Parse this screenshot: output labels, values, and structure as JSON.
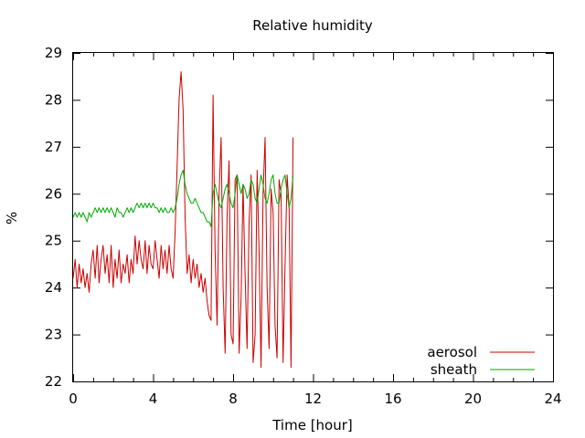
{
  "chart_data": {
    "type": "line",
    "title": "Relative humidity",
    "xlabel": "Time [hour]",
    "ylabel": "%",
    "xlim": [
      0,
      24
    ],
    "ylim": [
      22,
      29
    ],
    "xticks": [
      0,
      4,
      8,
      12,
      16,
      20,
      24
    ],
    "xtick_labels": [
      "0",
      "4",
      "8",
      "12",
      "16",
      "20",
      "24"
    ],
    "yticks": [
      22,
      23,
      24,
      25,
      26,
      27,
      28,
      29
    ],
    "ytick_labels": [
      "22",
      "23",
      "24",
      "25",
      "26",
      "27",
      "28",
      "29"
    ],
    "grid": false,
    "legend_position": "bottom-right",
    "series": [
      {
        "name": "aerosol",
        "color": "#cc0000",
        "x": [
          0.0,
          0.1,
          0.2,
          0.3,
          0.4,
          0.5,
          0.6,
          0.7,
          0.8,
          0.9,
          1.0,
          1.1,
          1.2,
          1.3,
          1.4,
          1.5,
          1.6,
          1.7,
          1.8,
          1.9,
          2.0,
          2.1,
          2.2,
          2.3,
          2.4,
          2.5,
          2.6,
          2.7,
          2.8,
          2.9,
          3.0,
          3.1,
          3.2,
          3.3,
          3.4,
          3.5,
          3.6,
          3.7,
          3.8,
          3.9,
          4.0,
          4.1,
          4.2,
          4.3,
          4.4,
          4.5,
          4.6,
          4.7,
          4.8,
          4.9,
          5.0,
          5.1,
          5.2,
          5.3,
          5.4,
          5.5,
          5.6,
          5.7,
          5.8,
          5.9,
          6.0,
          6.1,
          6.2,
          6.3,
          6.4,
          6.5,
          6.6,
          6.7,
          6.8,
          6.9,
          7.0,
          7.1,
          7.2,
          7.3,
          7.4,
          7.5,
          7.6,
          7.7,
          7.8,
          7.9,
          8.0,
          8.1,
          8.2,
          8.3,
          8.4,
          8.5,
          8.6,
          8.7,
          8.8,
          8.9,
          9.0,
          9.1,
          9.2,
          9.3,
          9.4,
          9.5,
          9.6,
          9.7,
          9.8,
          9.9,
          10.0,
          10.1,
          10.2,
          10.3,
          10.4,
          10.5,
          10.6,
          10.7,
          10.8,
          10.9,
          11.0
        ],
        "y": [
          24.2,
          24.6,
          24.0,
          24.5,
          24.1,
          24.4,
          24.0,
          24.3,
          23.9,
          24.5,
          24.8,
          24.2,
          24.9,
          24.1,
          24.6,
          24.9,
          24.3,
          24.7,
          24.1,
          24.9,
          24.0,
          24.6,
          24.2,
          24.8,
          24.1,
          24.5,
          24.3,
          24.7,
          24.1,
          24.6,
          24.3,
          25.1,
          24.5,
          25.0,
          24.6,
          24.4,
          25.0,
          24.3,
          24.9,
          24.5,
          24.4,
          25.0,
          24.6,
          24.2,
          24.9,
          24.4,
          24.8,
          24.3,
          24.9,
          24.4,
          24.2,
          25.2,
          26.6,
          28.0,
          28.6,
          27.8,
          25.5,
          24.3,
          24.7,
          24.1,
          24.6,
          24.2,
          24.5,
          24.0,
          24.3,
          23.9,
          24.2,
          23.7,
          23.4,
          23.3,
          28.1,
          24.8,
          23.2,
          26.0,
          27.2,
          24.0,
          22.6,
          25.5,
          26.7,
          23.0,
          22.8,
          26.3,
          26.4,
          22.6,
          23.8,
          26.2,
          24.3,
          22.7,
          25.4,
          26.4,
          22.4,
          23.0,
          26.5,
          24.8,
          22.3,
          26.0,
          27.2,
          24.0,
          22.7,
          26.1,
          25.6,
          23.2,
          22.5,
          26.3,
          26.0,
          22.4,
          24.5,
          26.4,
          25.7,
          22.3,
          27.2
        ]
      },
      {
        "name": "sheath",
        "color": "#00aa00",
        "x": [
          0.0,
          0.1,
          0.2,
          0.3,
          0.4,
          0.5,
          0.6,
          0.7,
          0.8,
          0.9,
          1.0,
          1.1,
          1.2,
          1.3,
          1.4,
          1.5,
          1.6,
          1.7,
          1.8,
          1.9,
          2.0,
          2.1,
          2.2,
          2.3,
          2.4,
          2.5,
          2.6,
          2.7,
          2.8,
          2.9,
          3.0,
          3.1,
          3.2,
          3.3,
          3.4,
          3.5,
          3.6,
          3.7,
          3.8,
          3.9,
          4.0,
          4.1,
          4.2,
          4.3,
          4.4,
          4.5,
          4.6,
          4.7,
          4.8,
          4.9,
          5.0,
          5.1,
          5.2,
          5.3,
          5.4,
          5.5,
          5.6,
          5.7,
          5.8,
          5.9,
          6.0,
          6.1,
          6.2,
          6.3,
          6.4,
          6.5,
          6.6,
          6.7,
          6.8,
          6.9,
          7.0,
          7.1,
          7.2,
          7.3,
          7.4,
          7.5,
          7.6,
          7.7,
          7.8,
          7.9,
          8.0,
          8.1,
          8.2,
          8.3,
          8.4,
          8.5,
          8.6,
          8.7,
          8.8,
          8.9,
          9.0,
          9.1,
          9.2,
          9.3,
          9.4,
          9.5,
          9.6,
          9.7,
          9.8,
          9.9,
          10.0,
          10.1,
          10.2,
          10.3,
          10.4,
          10.5,
          10.6,
          10.7,
          10.8,
          10.9,
          11.0
        ],
        "y": [
          25.5,
          25.6,
          25.5,
          25.6,
          25.5,
          25.6,
          25.5,
          25.4,
          25.6,
          25.5,
          25.6,
          25.7,
          25.6,
          25.7,
          25.6,
          25.7,
          25.6,
          25.7,
          25.6,
          25.7,
          25.6,
          25.5,
          25.7,
          25.6,
          25.6,
          25.5,
          25.6,
          25.7,
          25.6,
          25.7,
          25.6,
          25.7,
          25.8,
          25.7,
          25.8,
          25.7,
          25.8,
          25.7,
          25.8,
          25.7,
          25.8,
          25.7,
          25.7,
          25.6,
          25.7,
          25.6,
          25.7,
          25.6,
          25.6,
          25.7,
          25.6,
          25.7,
          25.9,
          26.2,
          26.4,
          26.5,
          26.2,
          26.0,
          25.9,
          25.8,
          25.8,
          25.9,
          25.8,
          25.7,
          25.6,
          25.6,
          25.5,
          25.4,
          25.4,
          25.3,
          26.0,
          26.2,
          26.0,
          25.8,
          25.7,
          25.9,
          26.1,
          26.2,
          26.0,
          25.8,
          25.7,
          26.0,
          26.4,
          26.2,
          26.0,
          26.2,
          26.1,
          25.9,
          26.0,
          26.3,
          26.2,
          25.9,
          25.8,
          26.1,
          26.4,
          26.2,
          25.9,
          25.8,
          26.0,
          26.3,
          26.4,
          26.0,
          25.8,
          25.8,
          26.1,
          26.3,
          26.4,
          26.0,
          25.7,
          25.9,
          26.4
        ]
      }
    ]
  }
}
